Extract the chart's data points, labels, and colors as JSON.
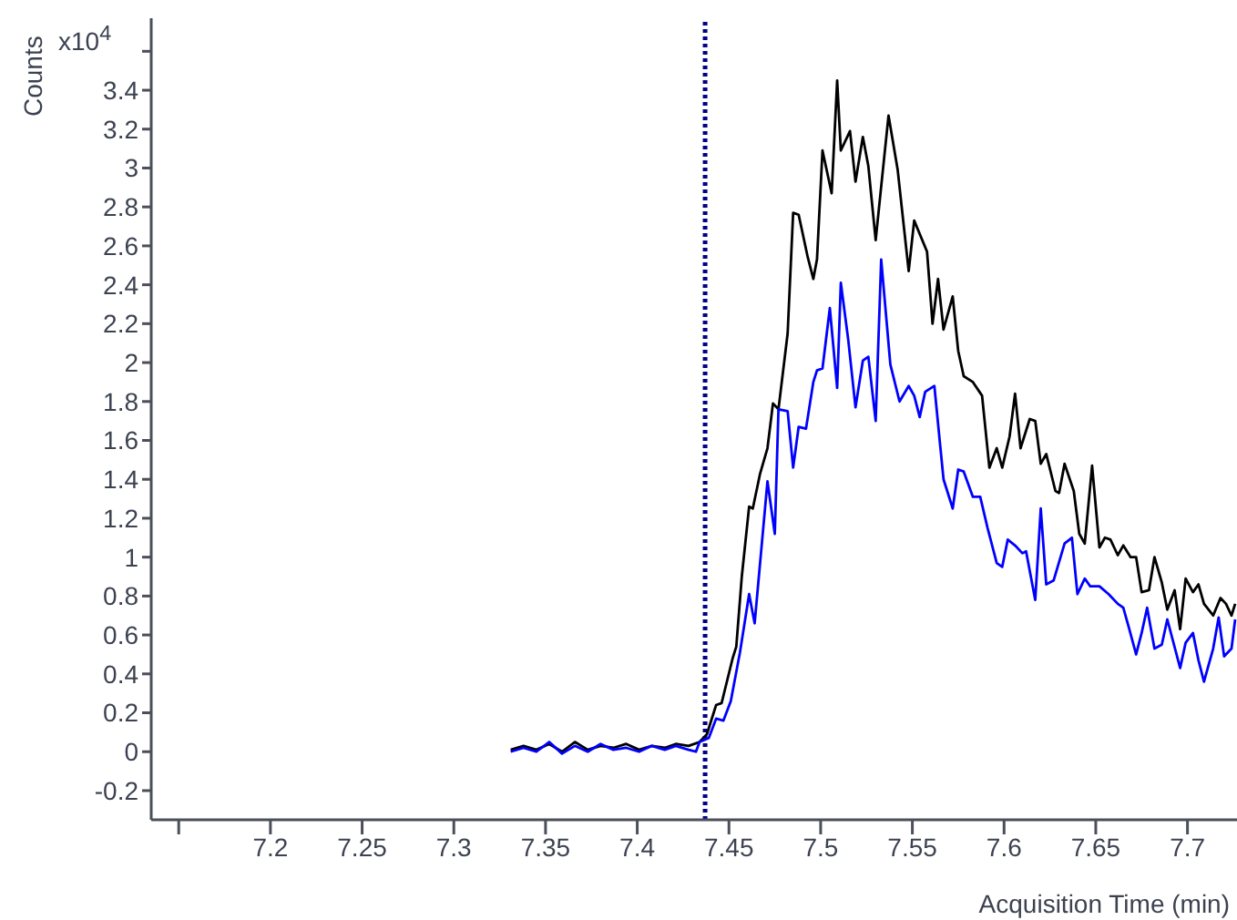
{
  "chart_data": {
    "type": "line",
    "xlabel": "Acquisition Time (min)",
    "ylabel": "Counts",
    "annotations": [
      "x10$^{4}$"
    ],
    "xlim": [
      7.135,
      7.727
    ],
    "ylim": [
      -0.35,
      3.77
    ],
    "xticks": [
      {
        "value": 7.15,
        "label": null
      },
      7.2,
      7.25,
      7.3,
      7.35,
      7.4,
      7.45,
      7.5,
      7.55,
      7.6,
      7.65,
      7.7
    ],
    "yticks": [
      -0.2,
      0,
      0.2,
      0.4,
      0.6,
      0.8,
      1,
      1.2,
      1.4,
      1.6,
      1.8,
      2,
      2.2,
      2.4,
      2.6,
      2.8,
      3,
      3.2,
      3.4,
      {
        "value": 3.6,
        "label": null
      }
    ],
    "grid": false,
    "marker": "none",
    "line_style": "solid",
    "ref_lines": [
      {
        "axis": "x",
        "value": 7.437,
        "color": "#00008b",
        "line_style": "dotted"
      }
    ],
    "series": [
      {
        "color": "#000000",
        "x": [
          7.331,
          7.338,
          7.345,
          7.352,
          7.359,
          7.366,
          7.373,
          7.38,
          7.387,
          7.394,
          7.401,
          7.408,
          7.415,
          7.421,
          7.428,
          7.434,
          7.438,
          7.443,
          7.446,
          7.452,
          7.454,
          7.457,
          7.461,
          7.463,
          7.467,
          7.471,
          7.474,
          7.477,
          7.482,
          7.485,
          7.488,
          7.493,
          7.496,
          7.498,
          7.501,
          7.506,
          7.509,
          7.511,
          7.516,
          7.519,
          7.523,
          7.526,
          7.53,
          7.537,
          7.542,
          7.548,
          7.551,
          7.558,
          7.561,
          7.564,
          7.567,
          7.572,
          7.575,
          7.578,
          7.583,
          7.588,
          7.592,
          7.596,
          7.599,
          7.603,
          7.606,
          7.609,
          7.614,
          7.617,
          7.62,
          7.623,
          7.628,
          7.63,
          7.633,
          7.638,
          7.641,
          7.644,
          7.648,
          7.652,
          7.655,
          7.658,
          7.662,
          7.665,
          7.669,
          7.672,
          7.675,
          7.679,
          7.682,
          7.686,
          7.689,
          7.693,
          7.696,
          7.699,
          7.703,
          7.706,
          7.709,
          7.714,
          7.718,
          7.721,
          7.724,
          7.726
        ],
        "values": [
          0.01,
          0.03,
          0.01,
          0.04,
          0.0,
          0.05,
          0.01,
          0.03,
          0.02,
          0.04,
          0.01,
          0.03,
          0.02,
          0.04,
          0.03,
          0.05,
          0.09,
          0.24,
          0.25,
          0.48,
          0.54,
          0.9,
          1.26,
          1.25,
          1.43,
          1.56,
          1.79,
          1.76,
          2.15,
          2.77,
          2.76,
          2.54,
          2.43,
          2.53,
          3.09,
          2.87,
          3.45,
          3.09,
          3.19,
          2.93,
          3.16,
          3.01,
          2.63,
          3.27,
          2.99,
          2.47,
          2.73,
          2.57,
          2.2,
          2.43,
          2.17,
          2.34,
          2.06,
          1.93,
          1.9,
          1.83,
          1.46,
          1.56,
          1.46,
          1.62,
          1.84,
          1.56,
          1.71,
          1.7,
          1.48,
          1.53,
          1.34,
          1.33,
          1.48,
          1.34,
          1.12,
          1.07,
          1.47,
          1.05,
          1.1,
          1.09,
          1.01,
          1.06,
          1.0,
          1.0,
          0.82,
          0.83,
          1.0,
          0.87,
          0.73,
          0.83,
          0.63,
          0.89,
          0.82,
          0.86,
          0.76,
          0.7,
          0.79,
          0.76,
          0.7,
          0.76
        ]
      },
      {
        "color": "#0000ff",
        "x": [
          7.331,
          7.338,
          7.345,
          7.352,
          7.359,
          7.366,
          7.373,
          7.38,
          7.387,
          7.394,
          7.401,
          7.408,
          7.415,
          7.421,
          7.428,
          7.432,
          7.434,
          7.439,
          7.443,
          7.447,
          7.451,
          7.456,
          7.461,
          7.464,
          7.471,
          7.475,
          7.477,
          7.482,
          7.485,
          7.488,
          7.492,
          7.496,
          7.498,
          7.501,
          7.505,
          7.509,
          7.511,
          7.515,
          7.519,
          7.523,
          7.526,
          7.53,
          7.533,
          7.538,
          7.543,
          7.548,
          7.551,
          7.554,
          7.557,
          7.562,
          7.565,
          7.567,
          7.572,
          7.575,
          7.578,
          7.583,
          7.587,
          7.591,
          7.596,
          7.599,
          7.602,
          7.606,
          7.61,
          7.612,
          7.617,
          7.62,
          7.623,
          7.627,
          7.633,
          7.637,
          7.64,
          7.644,
          7.647,
          7.652,
          7.657,
          7.662,
          7.665,
          7.668,
          7.672,
          7.675,
          7.678,
          7.682,
          7.686,
          7.689,
          7.696,
          7.699,
          7.703,
          7.706,
          7.709,
          7.714,
          7.717,
          7.72,
          7.724,
          7.726
        ],
        "values": [
          0.0,
          0.02,
          0.0,
          0.05,
          -0.01,
          0.03,
          0.0,
          0.04,
          0.01,
          0.02,
          0.0,
          0.03,
          0.01,
          0.03,
          0.01,
          0.0,
          0.05,
          0.07,
          0.17,
          0.16,
          0.26,
          0.51,
          0.81,
          0.66,
          1.39,
          1.12,
          1.76,
          1.75,
          1.46,
          1.67,
          1.66,
          1.9,
          1.96,
          1.97,
          2.28,
          1.87,
          2.41,
          2.12,
          1.77,
          2.01,
          2.03,
          1.7,
          2.53,
          1.99,
          1.8,
          1.88,
          1.83,
          1.72,
          1.85,
          1.88,
          1.59,
          1.4,
          1.25,
          1.45,
          1.44,
          1.31,
          1.31,
          1.15,
          0.97,
          0.95,
          1.09,
          1.06,
          1.02,
          1.03,
          0.78,
          1.25,
          0.86,
          0.88,
          1.07,
          1.1,
          0.81,
          0.89,
          0.85,
          0.85,
          0.81,
          0.76,
          0.74,
          0.64,
          0.5,
          0.61,
          0.74,
          0.53,
          0.55,
          0.68,
          0.43,
          0.56,
          0.61,
          0.47,
          0.36,
          0.53,
          0.69,
          0.49,
          0.53,
          0.68
        ]
      }
    ]
  }
}
